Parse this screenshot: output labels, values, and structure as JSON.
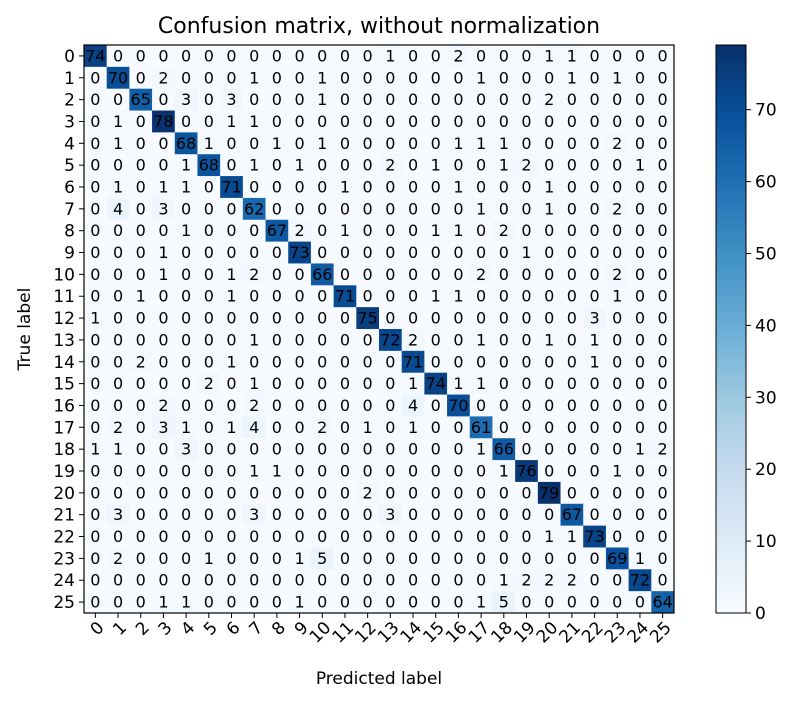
{
  "chart_data": {
    "type": "heatmap",
    "title": "Confusion matrix, without normalization",
    "xlabel": "Predicted label",
    "ylabel": "True label",
    "x_tick_labels": [
      "0",
      "1",
      "2",
      "3",
      "4",
      "5",
      "6",
      "7",
      "8",
      "9",
      "10",
      "11",
      "12",
      "13",
      "14",
      "15",
      "16",
      "17",
      "18",
      "19",
      "20",
      "21",
      "22",
      "23",
      "24",
      "25"
    ],
    "y_tick_labels": [
      "0",
      "1",
      "2",
      "3",
      "4",
      "5",
      "6",
      "7",
      "8",
      "9",
      "10",
      "11",
      "12",
      "13",
      "14",
      "15",
      "16",
      "17",
      "18",
      "19",
      "20",
      "21",
      "22",
      "23",
      "24",
      "25"
    ],
    "colormap": "Blues",
    "vmin": 0,
    "vmax": 79,
    "colorbar_ticks": [
      "0",
      "10",
      "20",
      "30",
      "40",
      "50",
      "60",
      "70"
    ],
    "matrix": [
      [
        74,
        0,
        0,
        0,
        0,
        0,
        0,
        0,
        0,
        0,
        0,
        0,
        0,
        1,
        0,
        0,
        2,
        0,
        0,
        0,
        1,
        1,
        0,
        0,
        0,
        0
      ],
      [
        0,
        70,
        0,
        2,
        0,
        0,
        0,
        1,
        0,
        0,
        1,
        0,
        0,
        0,
        0,
        0,
        0,
        1,
        0,
        0,
        0,
        1,
        0,
        1,
        0,
        0
      ],
      [
        0,
        0,
        65,
        0,
        3,
        0,
        3,
        0,
        0,
        0,
        1,
        0,
        0,
        0,
        0,
        0,
        0,
        0,
        0,
        0,
        2,
        0,
        0,
        0,
        0,
        0
      ],
      [
        0,
        1,
        0,
        78,
        0,
        0,
        1,
        1,
        0,
        0,
        0,
        0,
        0,
        0,
        0,
        0,
        0,
        0,
        0,
        0,
        0,
        0,
        0,
        0,
        0,
        0
      ],
      [
        0,
        1,
        0,
        0,
        68,
        1,
        0,
        0,
        1,
        0,
        1,
        0,
        0,
        0,
        0,
        0,
        1,
        1,
        1,
        0,
        0,
        0,
        0,
        2,
        0,
        0
      ],
      [
        0,
        0,
        0,
        0,
        1,
        68,
        0,
        1,
        0,
        1,
        0,
        0,
        0,
        2,
        0,
        1,
        0,
        0,
        1,
        2,
        0,
        0,
        0,
        0,
        1,
        0
      ],
      [
        0,
        1,
        0,
        1,
        1,
        0,
        71,
        0,
        0,
        0,
        0,
        1,
        0,
        0,
        0,
        0,
        1,
        0,
        0,
        0,
        1,
        0,
        0,
        0,
        0,
        0
      ],
      [
        0,
        4,
        0,
        3,
        0,
        0,
        0,
        62,
        0,
        0,
        0,
        0,
        0,
        0,
        0,
        0,
        0,
        1,
        0,
        0,
        1,
        0,
        0,
        2,
        0,
        0
      ],
      [
        0,
        0,
        0,
        0,
        1,
        0,
        0,
        0,
        67,
        2,
        0,
        1,
        0,
        0,
        0,
        1,
        1,
        0,
        2,
        0,
        0,
        0,
        0,
        0,
        0,
        0
      ],
      [
        0,
        0,
        0,
        1,
        0,
        0,
        0,
        0,
        0,
        73,
        0,
        0,
        0,
        0,
        0,
        0,
        0,
        0,
        0,
        1,
        0,
        0,
        0,
        0,
        0,
        0
      ],
      [
        0,
        0,
        0,
        1,
        0,
        0,
        1,
        2,
        0,
        0,
        66,
        0,
        0,
        0,
        0,
        0,
        0,
        2,
        0,
        0,
        0,
        0,
        0,
        2,
        0,
        0
      ],
      [
        0,
        0,
        1,
        0,
        0,
        0,
        1,
        0,
        0,
        0,
        0,
        71,
        0,
        0,
        0,
        1,
        1,
        0,
        0,
        0,
        0,
        0,
        0,
        1,
        0,
        0
      ],
      [
        1,
        0,
        0,
        0,
        0,
        0,
        0,
        0,
        0,
        0,
        0,
        0,
        75,
        0,
        0,
        0,
        0,
        0,
        0,
        0,
        0,
        0,
        3,
        0,
        0,
        0
      ],
      [
        0,
        0,
        0,
        0,
        0,
        0,
        0,
        1,
        0,
        0,
        0,
        0,
        0,
        72,
        2,
        0,
        0,
        1,
        0,
        0,
        1,
        0,
        1,
        0,
        0,
        0
      ],
      [
        0,
        0,
        2,
        0,
        0,
        0,
        1,
        0,
        0,
        0,
        0,
        0,
        0,
        0,
        71,
        0,
        0,
        0,
        0,
        0,
        0,
        0,
        1,
        0,
        0,
        0
      ],
      [
        0,
        0,
        0,
        0,
        0,
        2,
        0,
        1,
        0,
        0,
        0,
        0,
        0,
        0,
        1,
        74,
        1,
        1,
        0,
        0,
        0,
        0,
        0,
        0,
        0,
        0
      ],
      [
        0,
        0,
        0,
        2,
        0,
        0,
        0,
        2,
        0,
        0,
        0,
        0,
        0,
        0,
        4,
        0,
        70,
        0,
        0,
        0,
        0,
        0,
        0,
        0,
        0,
        0
      ],
      [
        0,
        2,
        0,
        3,
        1,
        0,
        1,
        4,
        0,
        0,
        2,
        0,
        1,
        0,
        1,
        0,
        0,
        61,
        0,
        0,
        0,
        0,
        0,
        0,
        0,
        0
      ],
      [
        1,
        1,
        0,
        0,
        3,
        0,
        0,
        0,
        0,
        0,
        0,
        0,
        0,
        0,
        0,
        0,
        0,
        1,
        66,
        0,
        0,
        0,
        0,
        0,
        1,
        2
      ],
      [
        0,
        0,
        0,
        0,
        0,
        0,
        0,
        1,
        1,
        0,
        0,
        0,
        0,
        0,
        0,
        0,
        0,
        0,
        1,
        76,
        0,
        0,
        0,
        1,
        0,
        0
      ],
      [
        0,
        0,
        0,
        0,
        0,
        0,
        0,
        0,
        0,
        0,
        0,
        0,
        2,
        0,
        0,
        0,
        0,
        0,
        0,
        0,
        79,
        0,
        0,
        0,
        0,
        0
      ],
      [
        0,
        3,
        0,
        0,
        0,
        0,
        0,
        3,
        0,
        0,
        0,
        0,
        0,
        3,
        0,
        0,
        0,
        0,
        0,
        0,
        0,
        67,
        0,
        0,
        0,
        0
      ],
      [
        0,
        0,
        0,
        0,
        0,
        0,
        0,
        0,
        0,
        0,
        0,
        0,
        0,
        0,
        0,
        0,
        0,
        0,
        0,
        0,
        1,
        1,
        73,
        0,
        0,
        0
      ],
      [
        0,
        2,
        0,
        0,
        0,
        1,
        0,
        0,
        0,
        1,
        5,
        0,
        0,
        0,
        0,
        0,
        0,
        0,
        0,
        0,
        0,
        0,
        0,
        69,
        1,
        0
      ],
      [
        0,
        0,
        0,
        0,
        0,
        0,
        0,
        0,
        0,
        0,
        0,
        0,
        0,
        0,
        0,
        0,
        0,
        0,
        1,
        2,
        2,
        2,
        0,
        0,
        72,
        0
      ],
      [
        0,
        0,
        0,
        1,
        1,
        0,
        0,
        0,
        0,
        1,
        0,
        0,
        0,
        0,
        0,
        0,
        0,
        1,
        5,
        0,
        0,
        0,
        0,
        0,
        0,
        64
      ]
    ]
  }
}
